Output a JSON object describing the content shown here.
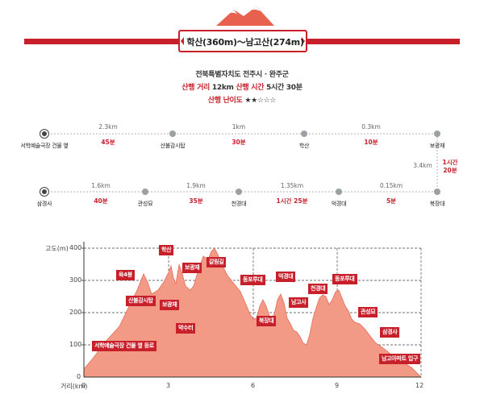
{
  "header": {
    "title": "학산(360m)～남고산(274m)",
    "region": "전북특별자치도 전주시 · 완주군",
    "distance_label": "산행 거리",
    "distance_value": "12km",
    "time_label": "산행 시간",
    "time_value": "5시간 30분",
    "difficulty_label": "산행 난이도",
    "difficulty_stars": "★★☆☆☆",
    "accent_color": "#c8202b"
  },
  "route": {
    "top_places": [
      "서학예술극장 건물 옆",
      "산불감시탑",
      "학산",
      "보광재"
    ],
    "top_distances": [
      "2.3km",
      "1km",
      "0.3km"
    ],
    "top_times": [
      "45분",
      "30분",
      "10분"
    ],
    "connector_distance": "3.4km",
    "connector_time_line1": "1시간",
    "connector_time_line2": "20분",
    "bottom_places": [
      "삼경사",
      "관성묘",
      "천경대",
      "억경대",
      "북장대"
    ],
    "bottom_distances": [
      "1.6km",
      "1.9km",
      "1.35km",
      "0.15km"
    ],
    "bottom_times": [
      "40분",
      "35분",
      "1시간 25분",
      "5분"
    ]
  },
  "profile": {
    "y_axis_label": "고도(m)",
    "x_axis_label": "거리(km)",
    "y_ticks": [
      "0",
      "100",
      "200",
      "300",
      "400"
    ],
    "x_ticks": [
      "0",
      "3",
      "6",
      "9",
      "12"
    ],
    "fill_color": "#f39a86",
    "labels": [
      "학산",
      "갈림길",
      "육4봉",
      "보광재",
      "동포루대",
      "억경대",
      "산불감시탑",
      "보광재",
      "천경대",
      "동포루대",
      "남고사",
      "북장대",
      "약수터",
      "관성묘",
      "삼경사",
      "서학예술극장 건물 옆 등로",
      "남고아파트 입구"
    ]
  }
}
